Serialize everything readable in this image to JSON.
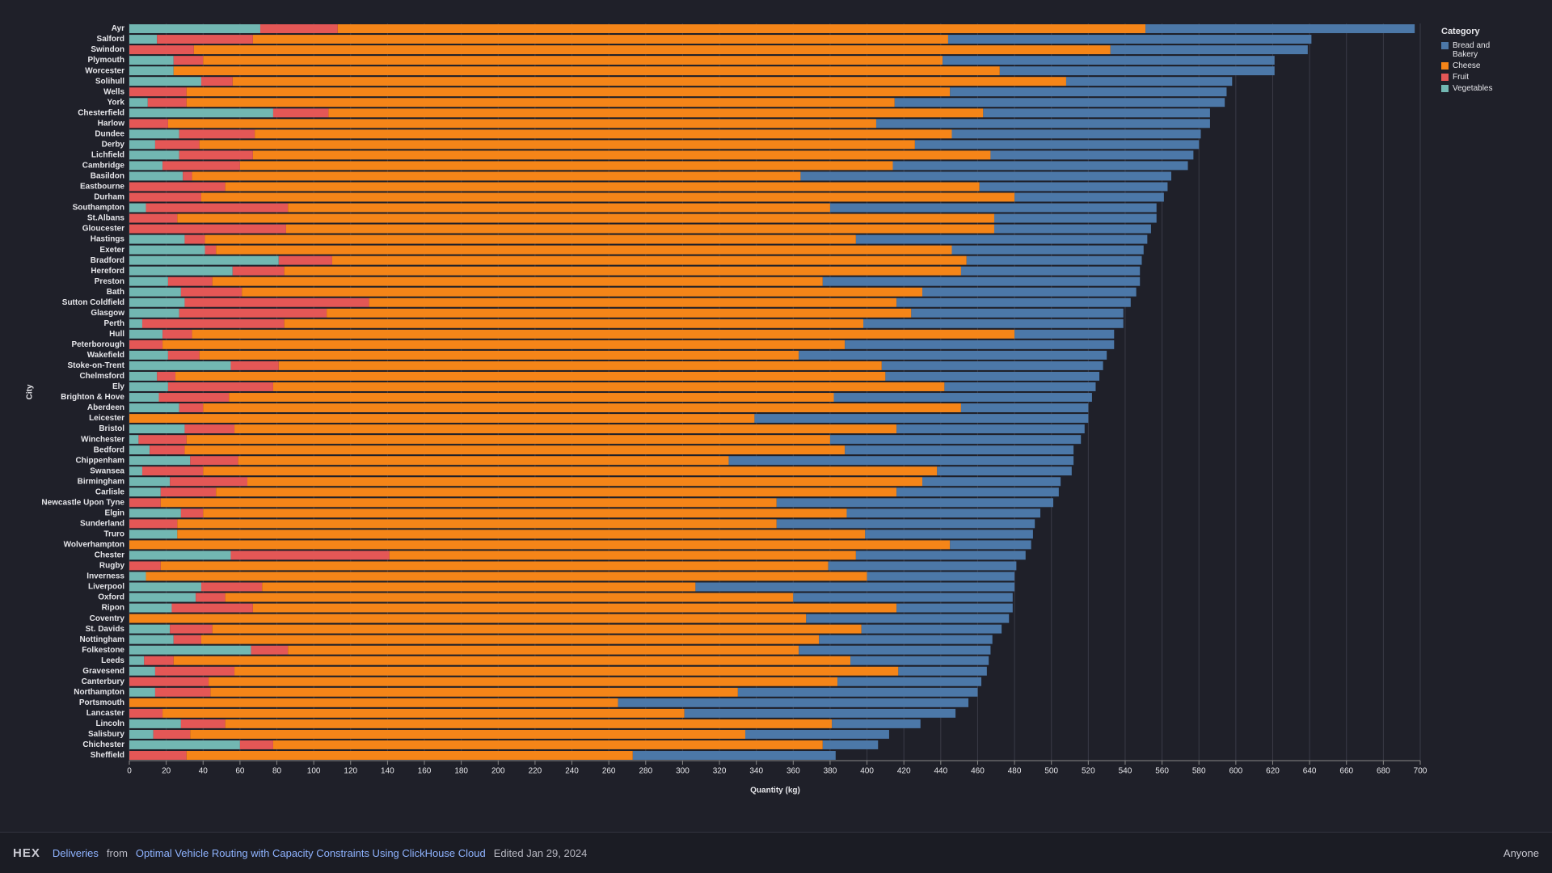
{
  "chart_data": {
    "type": "bar",
    "orientation": "horizontal",
    "stacked": true,
    "x_label": "Quantity (kg)",
    "y_label": "City",
    "legend_title": "Category",
    "legend": "top-right",
    "grid": true,
    "categories": [
      "Ayr",
      "Salford",
      "Swindon",
      "Plymouth",
      "Worcester",
      "Solihull",
      "Wells",
      "York",
      "Chesterfield",
      "Harlow",
      "Dundee",
      "Derby",
      "Lichfield",
      "Cambridge",
      "Basildon",
      "Eastbourne",
      "Durham",
      "Southampton",
      "St.Albans",
      "Gloucester",
      "Hastings",
      "Exeter",
      "Bradford",
      "Hereford",
      "Preston",
      "Bath",
      "Sutton Coldfield",
      "Glasgow",
      "Perth",
      "Hull",
      "Peterborough",
      "Wakefield",
      "Stoke-on-Trent",
      "Chelmsford",
      "Ely",
      "Brighton & Hove",
      "Aberdeen",
      "Leicester",
      "Bristol",
      "Winchester",
      "Bedford",
      "Chippenham",
      "Swansea",
      "Birmingham",
      "Carlisle",
      "Newcastle Upon Tyne",
      "Elgin",
      "Sunderland",
      "Truro",
      "Wolverhampton",
      "Chester",
      "Rugby",
      "Inverness",
      "Liverpool",
      "Oxford",
      "Ripon",
      "Coventry",
      "St. Davids",
      "Nottingham",
      "Folkestone",
      "Leeds",
      "Gravesend",
      "Canterbury",
      "Northampton",
      "Portsmouth",
      "Lancaster",
      "Lincoln",
      "Salisbury",
      "Chichester",
      "Sheffield"
    ],
    "series": [
      {
        "name": "Bread and Bakery",
        "color": "#4c78a8",
        "values": [
          146,
          197,
          107,
          180,
          149,
          90,
          150,
          179,
          123,
          181,
          135,
          154,
          110,
          160,
          201,
          102,
          81,
          177,
          88,
          85,
          158,
          104,
          95,
          97,
          172,
          116,
          127,
          115,
          141,
          54,
          146,
          167,
          120,
          116,
          82,
          140,
          69,
          181,
          102,
          136,
          124,
          187,
          73,
          75,
          88,
          150,
          105,
          140,
          91,
          44,
          92,
          102,
          80,
          173,
          119,
          63,
          110,
          76,
          94,
          104,
          75,
          48,
          78,
          130,
          190,
          147,
          48,
          78,
          30,
          110
        ]
      },
      {
        "name": "Cheese",
        "color": "#f58518",
        "values": [
          438,
          377,
          497,
          401,
          448,
          452,
          414,
          384,
          355,
          384,
          378,
          388,
          400,
          354,
          330,
          409,
          441,
          294,
          443,
          384,
          353,
          399,
          344,
          367,
          331,
          369,
          286,
          317,
          314,
          446,
          370,
          325,
          327,
          385,
          364,
          328,
          411,
          339,
          359,
          349,
          358,
          266,
          398,
          366,
          369,
          334,
          349,
          325,
          373,
          445,
          253,
          362,
          391,
          235,
          308,
          349,
          367,
          352,
          335,
          277,
          367,
          360,
          341,
          286,
          265,
          283,
          329,
          301,
          298,
          242
        ]
      },
      {
        "name": "Fruit",
        "color": "#e45756",
        "values": [
          42,
          52,
          35,
          16,
          0,
          17,
          31,
          21,
          30,
          21,
          41,
          24,
          40,
          42,
          5,
          52,
          39,
          77,
          26,
          85,
          11,
          6,
          29,
          28,
          24,
          33,
          100,
          80,
          77,
          16,
          18,
          17,
          26,
          10,
          57,
          38,
          13,
          0,
          27,
          26,
          19,
          26,
          33,
          42,
          30,
          17,
          12,
          26,
          0,
          0,
          86,
          17,
          0,
          33,
          16,
          44,
          0,
          23,
          15,
          20,
          16,
          43,
          43,
          30,
          0,
          18,
          24,
          20,
          18,
          31
        ]
      },
      {
        "name": "Vegetables",
        "color": "#72b7b2",
        "values": [
          71,
          15,
          0,
          24,
          24,
          39,
          0,
          10,
          78,
          0,
          27,
          14,
          27,
          18,
          29,
          0,
          0,
          9,
          0,
          0,
          30,
          41,
          81,
          56,
          21,
          28,
          30,
          27,
          7,
          18,
          0,
          21,
          55,
          15,
          21,
          16,
          27,
          0,
          30,
          5,
          11,
          33,
          7,
          22,
          17,
          0,
          28,
          0,
          26,
          0,
          55,
          0,
          9,
          39,
          36,
          23,
          0,
          22,
          24,
          66,
          8,
          14,
          0,
          14,
          0,
          0,
          28,
          13,
          60,
          0
        ]
      }
    ],
    "xlim": [
      0,
      700
    ],
    "xticks": [
      0,
      20,
      40,
      60,
      80,
      100,
      120,
      140,
      160,
      180,
      200,
      220,
      240,
      260,
      280,
      300,
      320,
      340,
      360,
      380,
      400,
      420,
      440,
      460,
      480,
      500,
      520,
      540,
      560,
      580,
      600,
      620,
      640,
      660,
      680,
      700
    ]
  },
  "footer": {
    "logo": "HEX",
    "link": "Deliveries",
    "from": "from",
    "project": "Optimal Vehicle Routing with Capacity Constraints Using ClickHouse Cloud",
    "edited": "Edited Jan 29, 2024",
    "access": "Anyone"
  }
}
